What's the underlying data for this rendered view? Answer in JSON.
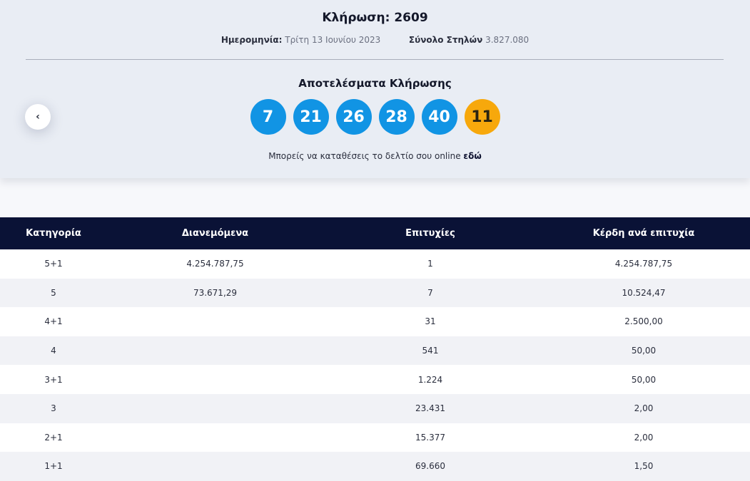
{
  "draw": {
    "title": "Κλήρωση: 2609",
    "date_label": "Ημερομηνία:",
    "date_value": "Τρίτη 13 Ιουνίου 2023",
    "columns_label": "Σύνολο Στηλών",
    "columns_value": "3.827.080",
    "results_title": "Αποτελέσματα Κλήρωσης",
    "prev_icon": "chevron-left-icon",
    "numbers": [
      "7",
      "21",
      "26",
      "28",
      "40"
    ],
    "joker": "11",
    "online_text": "Μπορείς να καταθέσεις το δελτίο σου online",
    "online_link": "εδώ"
  },
  "colors": {
    "ball": "#1194e4",
    "joker_ball": "#f7a80c",
    "table_header": "#0a1236"
  },
  "table": {
    "headers": [
      "Κατηγορία",
      "Διανεμόμενα",
      "Επιτυχίες",
      "Κέρδη ανά επιτυχία"
    ],
    "rows": [
      {
        "category": "5+1",
        "distributed": "4.254.787,75",
        "winners": "1",
        "prize": "4.254.787,75"
      },
      {
        "category": "5",
        "distributed": "73.671,29",
        "winners": "7",
        "prize": "10.524,47"
      },
      {
        "category": "4+1",
        "distributed": "",
        "winners": "31",
        "prize": "2.500,00"
      },
      {
        "category": "4",
        "distributed": "",
        "winners": "541",
        "prize": "50,00"
      },
      {
        "category": "3+1",
        "distributed": "",
        "winners": "1.224",
        "prize": "50,00"
      },
      {
        "category": "3",
        "distributed": "",
        "winners": "23.431",
        "prize": "2,00"
      },
      {
        "category": "2+1",
        "distributed": "",
        "winners": "15.377",
        "prize": "2,00"
      },
      {
        "category": "1+1",
        "distributed": "",
        "winners": "69.660",
        "prize": "1,50"
      }
    ]
  }
}
